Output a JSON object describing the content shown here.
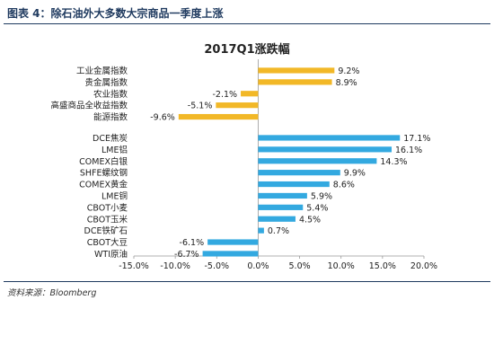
{
  "header": {
    "figure_title": "图表 4：除石油外大多数大宗商品一季度上涨",
    "source": "资料来源：Bloomberg"
  },
  "chart_data": {
    "type": "bar",
    "orientation": "horizontal",
    "title": "2017Q1涨跌幅",
    "xlim": [
      -15,
      20
    ],
    "x_ticks": [
      "-15.0%",
      "-10.0%",
      "-5.0%",
      "0.0%",
      "5.0%",
      "10.0%",
      "15.0%",
      "20.0%"
    ],
    "grid": false,
    "legend": "none",
    "groups": [
      {
        "color": "#f2b827",
        "categories": [
          "工业金属指数",
          "贵金属指数",
          "农业指数",
          "高盛商品全收益指数",
          "能源指数"
        ],
        "values": [
          9.2,
          8.9,
          -2.1,
          -5.1,
          -9.6
        ],
        "labels": [
          "9.2%",
          "8.9%",
          "-2.1%",
          "-5.1%",
          "-9.6%"
        ]
      },
      {
        "color": "#33a9e0",
        "categories": [
          "DCE焦炭",
          "LME铝",
          "COMEX白银",
          "SHFE螺纹钢",
          "COMEX黄金",
          "LME铜",
          "CBOT小麦",
          "CBOT玉米",
          "DCE铁矿石",
          "CBOT大豆",
          "WTI原油"
        ],
        "values": [
          17.1,
          16.1,
          14.3,
          9.9,
          8.6,
          5.9,
          5.4,
          4.5,
          0.7,
          -6.1,
          -6.7
        ],
        "labels": [
          "17.1%",
          "16.1%",
          "14.3%",
          "9.9%",
          "8.6%",
          "5.9%",
          "5.4%",
          "4.5%",
          "0.7%",
          "-6.1%",
          "-6.7%"
        ]
      }
    ]
  }
}
